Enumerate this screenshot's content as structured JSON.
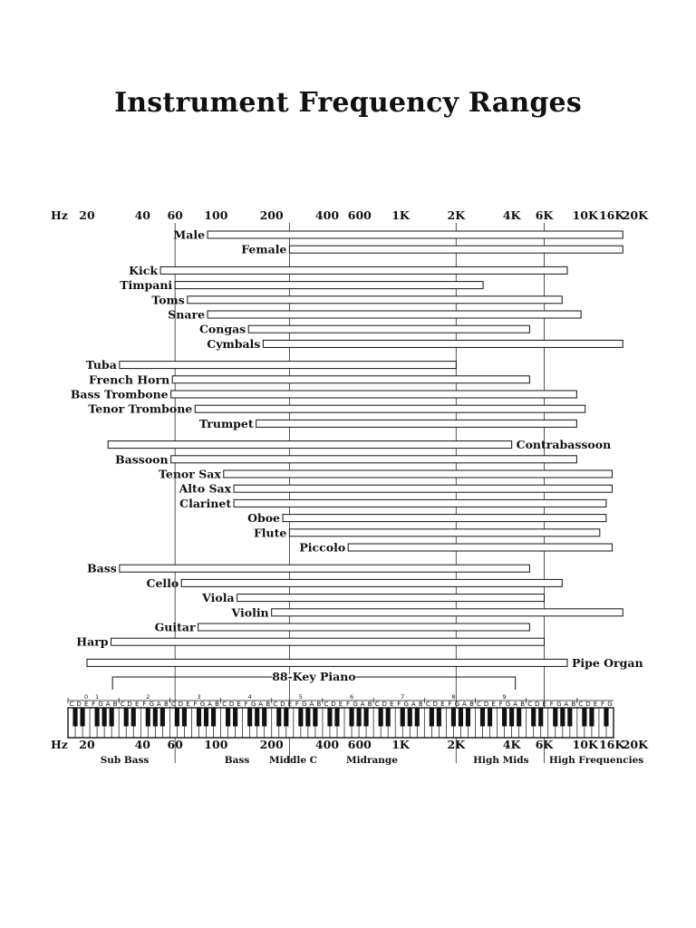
{
  "title": "Instrument Frequency Ranges",
  "chart_data": {
    "type": "bar",
    "orientation": "horizontal-range",
    "x_scale": "log",
    "xlim": [
      18,
      20000
    ],
    "axis_unit_label": "Hz",
    "tick_labels": [
      {
        "label": "20",
        "hz": 20
      },
      {
        "label": "40",
        "hz": 40
      },
      {
        "label": "60",
        "hz": 60
      },
      {
        "label": "100",
        "hz": 100
      },
      {
        "label": "200",
        "hz": 200
      },
      {
        "label": "400",
        "hz": 400
      },
      {
        "label": "600",
        "hz": 600
      },
      {
        "label": "1K",
        "hz": 1000
      },
      {
        "label": "2K",
        "hz": 2000
      },
      {
        "label": "4K",
        "hz": 4000
      },
      {
        "label": "6K",
        "hz": 6000
      },
      {
        "label": "10K",
        "hz": 10000
      },
      {
        "label": "16K",
        "hz": 16000
      },
      {
        "label": "20K",
        "hz": 20000
      }
    ],
    "reference_lines_hz": [
      60,
      250,
      2000,
      6000
    ],
    "groups": [
      {
        "instruments": [
          {
            "name": "Male",
            "low": 90,
            "high": 16000
          },
          {
            "name": "Female",
            "low": 250,
            "high": 16000
          }
        ]
      },
      {
        "instruments": [
          {
            "name": "Kick",
            "low": 50,
            "high": 8000
          },
          {
            "name": "Timpani",
            "low": 60,
            "high": 2800
          },
          {
            "name": "Toms",
            "low": 70,
            "high": 7500
          },
          {
            "name": "Snare",
            "low": 90,
            "high": 9500
          },
          {
            "name": "Congas",
            "low": 150,
            "high": 5000
          },
          {
            "name": "Cymbals",
            "low": 180,
            "high": 16000
          }
        ]
      },
      {
        "instruments": [
          {
            "name": "Tuba",
            "low": 30,
            "high": 2000
          },
          {
            "name": "French Horn",
            "low": 58,
            "high": 5000
          },
          {
            "name": "Bass Trombone",
            "low": 57,
            "high": 9000
          },
          {
            "name": "Tenor Trombone",
            "low": 77,
            "high": 10000
          },
          {
            "name": "Trumpet",
            "low": 165,
            "high": 9000
          }
        ]
      },
      {
        "instruments": [
          {
            "name": "Contrabassoon",
            "low": 26,
            "high": 4000,
            "label_side": "right"
          },
          {
            "name": "Bassoon",
            "low": 57,
            "high": 9000
          },
          {
            "name": "Tenor Sax",
            "low": 110,
            "high": 14000
          },
          {
            "name": "Alto Sax",
            "low": 125,
            "high": 14000
          },
          {
            "name": "Clarinet",
            "low": 125,
            "high": 13000
          },
          {
            "name": "Oboe",
            "low": 230,
            "high": 13000
          },
          {
            "name": "Flute",
            "low": 250,
            "high": 12000
          },
          {
            "name": "Piccolo",
            "low": 520,
            "high": 14000
          }
        ]
      },
      {
        "instruments": [
          {
            "name": "Bass",
            "low": 30,
            "high": 5000
          },
          {
            "name": "Cello",
            "low": 65,
            "high": 7500
          },
          {
            "name": "Viola",
            "low": 130,
            "high": 6000
          },
          {
            "name": "Violin",
            "low": 200,
            "high": 16000
          },
          {
            "name": "Guitar",
            "low": 80,
            "high": 5000
          },
          {
            "name": "Harp",
            "low": 27,
            "high": 6000
          }
        ]
      },
      {
        "instruments": [
          {
            "name": "Pipe Organ",
            "low": 20,
            "high": 8000,
            "label_side": "right"
          }
        ]
      }
    ],
    "piano": {
      "label": "88-Key Piano",
      "low": 27.5,
      "high": 4186
    },
    "octave_numbers": [
      "0",
      "1",
      "2",
      "3",
      "4",
      "5",
      "6",
      "7",
      "8",
      "9"
    ],
    "note_names": [
      "C",
      "D",
      "E",
      "F",
      "G",
      "A",
      "B"
    ],
    "regions": [
      {
        "label": "Sub Bass",
        "hz": 32
      },
      {
        "label": "Bass",
        "hz": 130
      },
      {
        "label": "Middle C",
        "hz": 262
      },
      {
        "label": "Midrange",
        "hz": 700
      },
      {
        "label": "High Mids",
        "hz": 3500
      },
      {
        "label": "High Frequencies",
        "hz": 11500
      }
    ]
  }
}
